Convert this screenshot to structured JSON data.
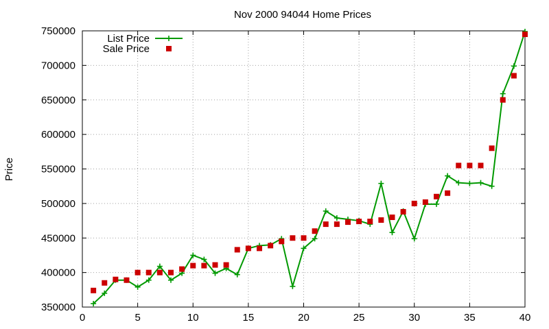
{
  "chart_data": {
    "type": "line",
    "title": "Nov 2000 94044 Home Prices",
    "xlabel": "",
    "ylabel": "Price",
    "xlim": [
      0,
      40
    ],
    "ylim": [
      350000,
      750000
    ],
    "xticks": [
      0,
      5,
      10,
      15,
      20,
      25,
      30,
      35,
      40
    ],
    "yticks": [
      350000,
      400000,
      450000,
      500000,
      550000,
      600000,
      650000,
      700000,
      750000
    ],
    "grid": true,
    "legend": "top-left",
    "series": [
      {
        "name": "List Price",
        "kind": "line-points",
        "color": "#009900",
        "x": [
          1,
          2,
          3,
          4,
          5,
          6,
          7,
          8,
          9,
          10,
          11,
          12,
          13,
          14,
          15,
          16,
          17,
          18,
          19,
          20,
          21,
          22,
          23,
          24,
          25,
          26,
          27,
          28,
          29,
          30,
          31,
          32,
          33,
          34,
          35,
          36,
          37,
          38,
          39,
          40
        ],
        "y": [
          355000,
          370000,
          389000,
          389000,
          379000,
          389000,
          409000,
          389000,
          399000,
          425000,
          419000,
          399000,
          406000,
          397000,
          435000,
          439000,
          440000,
          449000,
          380000,
          435000,
          449000,
          489000,
          479000,
          477000,
          475000,
          470000,
          529000,
          458000,
          489000,
          449000,
          499000,
          499000,
          540000,
          530000,
          529000,
          530000,
          525000,
          659000,
          699000,
          749000
        ]
      },
      {
        "name": "Sale Price",
        "kind": "points",
        "color": "#cc0000",
        "x": [
          1,
          2,
          3,
          4,
          5,
          6,
          7,
          8,
          9,
          10,
          11,
          12,
          13,
          14,
          15,
          16,
          17,
          18,
          19,
          20,
          21,
          22,
          23,
          24,
          25,
          26,
          27,
          28,
          29,
          30,
          31,
          32,
          33,
          34,
          35,
          36,
          37,
          38,
          39,
          40
        ],
        "y": [
          374000,
          385000,
          390000,
          389000,
          400000,
          400000,
          400000,
          400000,
          405000,
          410000,
          410000,
          411000,
          411000,
          433000,
          435000,
          435000,
          439000,
          445000,
          450000,
          450000,
          460000,
          470000,
          470000,
          473000,
          474000,
          474000,
          476000,
          480000,
          488000,
          500000,
          502000,
          510000,
          515000,
          555000,
          555000,
          555000,
          580000,
          650000,
          685000,
          745000
        ]
      }
    ]
  }
}
